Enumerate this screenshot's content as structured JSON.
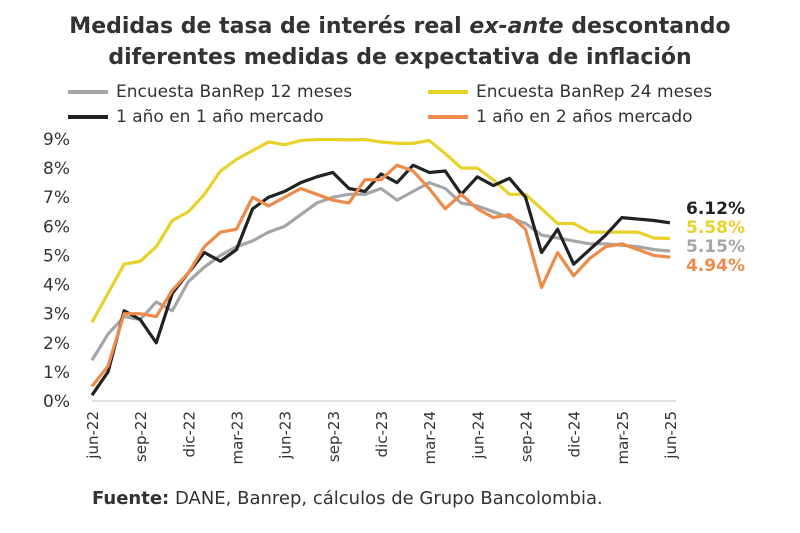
{
  "title": {
    "line1_a": "Medidas de tasa de interés real ",
    "line1_b": "ex-ante",
    "line1_c": " descontando",
    "line2": "diferentes medidas de expectativa de inflación"
  },
  "source": {
    "label": "Fuente:",
    "text": " DANE, Banrep, cálculos de Grupo Bancolombia."
  },
  "chart_data": {
    "type": "line",
    "ylim": [
      0,
      9
    ],
    "yticks": [
      "0%",
      "1%",
      "2%",
      "3%",
      "4%",
      "5%",
      "6%",
      "7%",
      "8%",
      "9%"
    ],
    "xtick_labels": [
      "jun-22",
      "sep-22",
      "dic-22",
      "mar-23",
      "jun-23",
      "sep-23",
      "dic-23",
      "mar-24",
      "jun-24",
      "sep-24",
      "dic-24",
      "mar-25",
      "jun-25"
    ],
    "months_count": 37,
    "series": [
      {
        "name": "Encuesta BanRep 12 meses",
        "color": "#a6a6a6",
        "end_label": "5.15%",
        "values": [
          1.4,
          2.3,
          2.9,
          2.8,
          3.4,
          3.1,
          4.1,
          4.6,
          5.0,
          5.3,
          5.5,
          5.8,
          6.0,
          6.4,
          6.8,
          7.0,
          7.1,
          7.1,
          7.3,
          6.9,
          7.2,
          7.5,
          7.3,
          6.8,
          6.7,
          6.5,
          6.3,
          6.1,
          5.7,
          5.6,
          5.5,
          5.4,
          5.4,
          5.35,
          5.3,
          5.2,
          5.15
        ]
      },
      {
        "name": "Encuesta BanRep 24 meses",
        "color": "#e8d22a",
        "end_label": "5.58%",
        "values": [
          2.7,
          3.7,
          4.7,
          4.8,
          5.3,
          6.2,
          6.5,
          7.1,
          7.9,
          8.3,
          8.6,
          8.9,
          8.8,
          8.95,
          8.98,
          8.98,
          8.97,
          8.98,
          8.9,
          8.85,
          8.85,
          8.95,
          8.5,
          8.0,
          8.0,
          7.6,
          7.1,
          7.1,
          6.6,
          6.1,
          6.1,
          5.8,
          5.8,
          5.8,
          5.8,
          5.6,
          5.58
        ]
      },
      {
        "name": "1 año en 1 año mercado",
        "color": "#222222",
        "end_label": "6.12%",
        "values": [
          0.2,
          1.0,
          3.1,
          2.8,
          2.0,
          3.7,
          4.4,
          5.1,
          4.8,
          5.2,
          6.6,
          7.0,
          7.2,
          7.5,
          7.7,
          7.85,
          7.3,
          7.2,
          7.8,
          7.5,
          8.1,
          7.85,
          7.9,
          7.1,
          7.7,
          7.4,
          7.65,
          7.0,
          5.1,
          5.9,
          4.7,
          5.2,
          5.7,
          6.3,
          6.25,
          6.2,
          6.12
        ]
      },
      {
        "name": "1 año en 2 años mercado",
        "color": "#ee8a4a",
        "end_label": "4.94%",
        "values": [
          0.5,
          1.2,
          3.0,
          3.0,
          2.9,
          3.8,
          4.4,
          5.3,
          5.8,
          5.9,
          7.0,
          6.7,
          7.0,
          7.3,
          7.1,
          6.9,
          6.8,
          7.6,
          7.6,
          8.1,
          7.9,
          7.3,
          6.6,
          7.1,
          6.6,
          6.3,
          6.4,
          5.9,
          3.9,
          5.1,
          4.3,
          4.9,
          5.3,
          5.4,
          5.2,
          5.0,
          4.94
        ]
      }
    ]
  }
}
